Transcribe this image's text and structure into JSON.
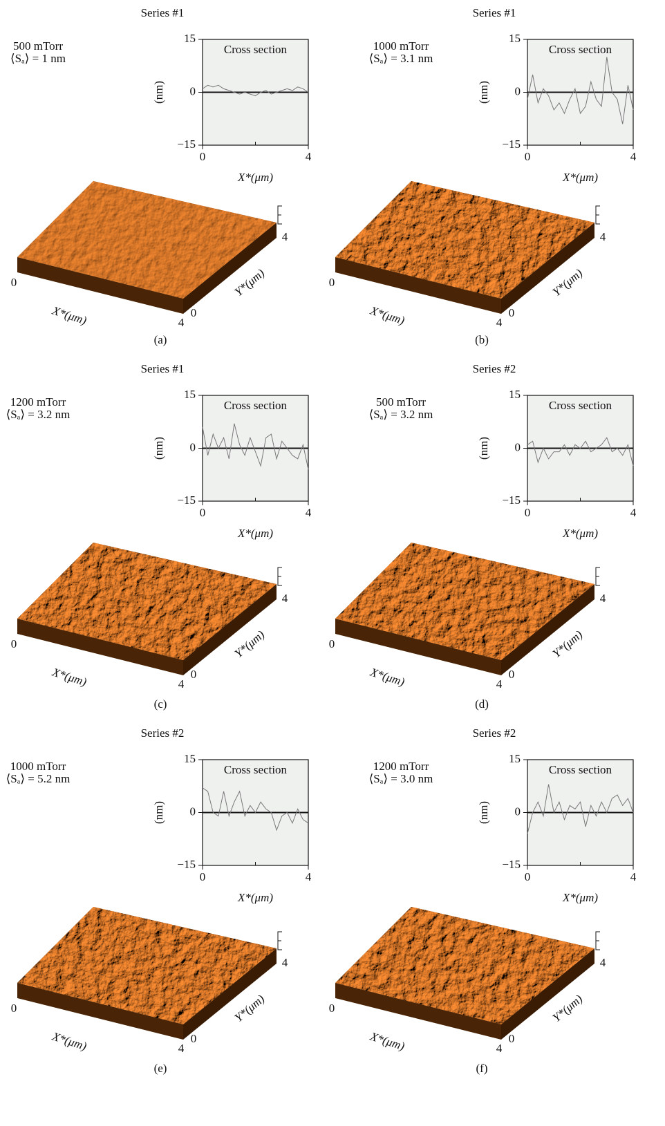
{
  "chart_data": [
    {
      "type": "line",
      "panel_label": "(a)",
      "series_label": "Series #1",
      "pressure": "500 mTorr",
      "roughness": "⟨Sₐ⟩ = 1 nm",
      "title": "Cross section",
      "x_label": "X*(μm)",
      "y_label": "(nm)",
      "color": "#777777",
      "zero_line": true,
      "x": [
        0,
        0.2,
        0.4,
        0.6,
        0.8,
        1,
        1.2,
        1.4,
        1.6,
        1.8,
        2,
        2.2,
        2.4,
        2.6,
        2.8,
        3,
        3.2,
        3.4,
        3.6,
        3.8,
        4
      ],
      "values": [
        1,
        2,
        1.5,
        2,
        1,
        0.5,
        0,
        -0.5,
        0,
        -0.5,
        -1,
        0,
        0.5,
        -0.5,
        0,
        0.5,
        1,
        0.5,
        1.5,
        1,
        0
      ],
      "xlim": [
        0,
        4
      ],
      "ylim": [
        -15,
        15
      ],
      "xticks": [
        0,
        4
      ],
      "yticks": [
        {
          "value": -15,
          "label": "−15"
        },
        0,
        15
      ],
      "surface": {
        "x_label": "X*(μm)",
        "y_label": "Y*(μm)",
        "xticks": [
          0,
          4
        ],
        "yticks": [
          0,
          4
        ]
      }
    },
    {
      "type": "line",
      "panel_label": "(b)",
      "series_label": "Series #1",
      "pressure": "1000 mTorr",
      "roughness": "⟨Sₐ⟩ = 3.1 nm",
      "title": "Cross section",
      "x_label": "X*(μm)",
      "y_label": "(nm)",
      "color": "#777777",
      "zero_line": true,
      "x": [
        0,
        0.2,
        0.4,
        0.6,
        0.8,
        1,
        1.2,
        1.4,
        1.6,
        1.8,
        2,
        2.2,
        2.4,
        2.6,
        2.8,
        3,
        3.2,
        3.4,
        3.6,
        3.8,
        4
      ],
      "values": [
        -2,
        5,
        -3,
        1,
        -1,
        -5,
        -3,
        -6,
        -2,
        1,
        -6,
        -4,
        3,
        -2,
        -4,
        10,
        0,
        -2,
        -9,
        2,
        -5
      ],
      "xlim": [
        0,
        4
      ],
      "ylim": [
        -15,
        15
      ],
      "xticks": [
        0,
        4
      ],
      "yticks": [
        {
          "value": -15,
          "label": "−15"
        },
        0,
        15
      ],
      "surface": {
        "x_label": "X*(μm)",
        "y_label": "Y*(μm)",
        "xticks": [
          0,
          4
        ],
        "yticks": [
          0,
          4
        ]
      }
    },
    {
      "type": "line",
      "panel_label": "(c)",
      "series_label": "Series #1",
      "pressure": "1200 mTorr",
      "roughness": "⟨Sₐ⟩ = 3.2 nm",
      "title": "Cross section",
      "x_label": "X*(μm)",
      "y_label": "(nm)",
      "color": "#777777",
      "zero_line": true,
      "x": [
        0,
        0.2,
        0.4,
        0.6,
        0.8,
        1,
        1.2,
        1.4,
        1.6,
        1.8,
        2,
        2.2,
        2.4,
        2.6,
        2.8,
        3,
        3.2,
        3.4,
        3.6,
        3.8,
        4
      ],
      "values": [
        6,
        -2,
        4,
        0,
        3,
        -3,
        7,
        1,
        -2,
        3,
        -1,
        -5,
        3,
        4,
        -3,
        2,
        0,
        -2,
        -3,
        1,
        -6
      ],
      "xlim": [
        0,
        4
      ],
      "ylim": [
        -15,
        15
      ],
      "xticks": [
        0,
        4
      ],
      "yticks": [
        {
          "value": -15,
          "label": "−15"
        },
        0,
        15
      ],
      "surface": {
        "x_label": "X*(μm)",
        "y_label": "Y*(μm)",
        "xticks": [
          0,
          4
        ],
        "yticks": [
          0,
          4
        ]
      }
    },
    {
      "type": "line",
      "panel_label": "(d)",
      "series_label": "Series #2",
      "pressure": "500 mTorr",
      "roughness": "⟨Sₐ⟩ = 3.2 nm",
      "title": "Cross section",
      "x_label": "X*(μm)",
      "y_label": "(nm)",
      "color": "#777777",
      "zero_line": true,
      "x": [
        0,
        0.2,
        0.4,
        0.6,
        0.8,
        1,
        1.2,
        1.4,
        1.6,
        1.8,
        2,
        2.2,
        2.4,
        2.6,
        2.8,
        3,
        3.2,
        3.4,
        3.6,
        3.8,
        4
      ],
      "values": [
        1,
        2,
        -4,
        0,
        -3,
        -1,
        -1,
        1,
        -2,
        1,
        0,
        2,
        -1,
        0,
        1,
        3,
        -1,
        0,
        -2,
        1,
        -5
      ],
      "xlim": [
        0,
        4
      ],
      "ylim": [
        -15,
        15
      ],
      "xticks": [
        0,
        4
      ],
      "yticks": [
        {
          "value": -15,
          "label": "−15"
        },
        0,
        15
      ],
      "surface": {
        "x_label": "X*(μm)",
        "y_label": "Y*(μm)",
        "xticks": [
          0,
          4
        ],
        "yticks": [
          0,
          4
        ]
      }
    },
    {
      "type": "line",
      "panel_label": "(e)",
      "series_label": "Series #2",
      "pressure": "1000 mTorr",
      "roughness": "⟨Sₐ⟩ = 5.2 nm",
      "title": "Cross section",
      "x_label": "X*(μm)",
      "y_label": "(nm)",
      "color": "#777777",
      "zero_line": true,
      "x": [
        0,
        0.2,
        0.4,
        0.6,
        0.8,
        1,
        1.2,
        1.4,
        1.6,
        1.8,
        2,
        2.2,
        2.4,
        2.6,
        2.8,
        3,
        3.2,
        3.4,
        3.6,
        3.8,
        4
      ],
      "values": [
        7,
        6,
        0,
        -1,
        6,
        -1,
        3,
        6,
        -1,
        2,
        0,
        3,
        1,
        0,
        -5,
        -1,
        0,
        -3,
        1,
        -2,
        -3
      ],
      "xlim": [
        0,
        4
      ],
      "ylim": [
        -15,
        15
      ],
      "xticks": [
        0,
        4
      ],
      "yticks": [
        {
          "value": -15,
          "label": "−15"
        },
        0,
        15
      ],
      "surface": {
        "x_label": "X*(μm)",
        "y_label": "Y*(μm)",
        "xticks": [
          0,
          4
        ],
        "yticks": [
          0,
          4
        ]
      }
    },
    {
      "type": "line",
      "panel_label": "(f)",
      "series_label": "Series #2",
      "pressure": "1200 mTorr",
      "roughness": "⟨Sₐ⟩ = 3.0 nm",
      "title": "Cross section",
      "x_label": "X*(μm)",
      "y_label": "(nm)",
      "color": "#777777",
      "zero_line": true,
      "x": [
        0,
        0.2,
        0.4,
        0.6,
        0.8,
        1,
        1.2,
        1.4,
        1.6,
        1.8,
        2,
        2.2,
        2.4,
        2.6,
        2.8,
        3,
        3.2,
        3.4,
        3.6,
        3.8,
        4
      ],
      "values": [
        -6,
        0,
        3,
        -1,
        8,
        0,
        3,
        -2,
        2,
        1,
        3,
        -4,
        2,
        -1,
        3,
        0,
        4,
        5,
        2,
        4,
        0
      ],
      "xlim": [
        0,
        4
      ],
      "ylim": [
        -15,
        15
      ],
      "xticks": [
        0,
        4
      ],
      "yticks": [
        {
          "value": -15,
          "label": "−15"
        },
        0,
        15
      ],
      "surface": {
        "x_label": "X*(μm)",
        "y_label": "Y*(μm)",
        "xticks": [
          0,
          4
        ],
        "yticks": [
          0,
          4
        ]
      }
    }
  ]
}
